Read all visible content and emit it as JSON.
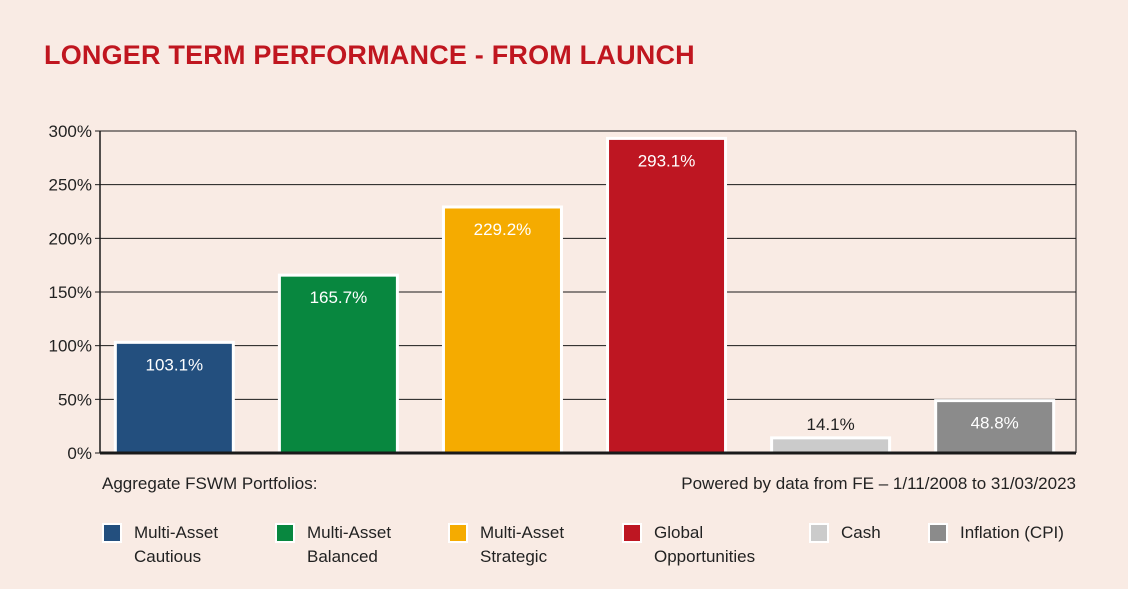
{
  "chart_data": {
    "type": "bar",
    "title": "LONGER TERM PERFORMANCE - FROM LAUNCH",
    "categories": [
      "Multi-Asset Cautious",
      "Multi-Asset Balanced",
      "Multi-Asset Strategic",
      "Global Opportunities",
      "Cash",
      "Inflation (CPI)"
    ],
    "values": [
      103.1,
      165.7,
      229.2,
      293.1,
      14.1,
      48.8
    ],
    "data_labels": [
      "103.1%",
      "165.7%",
      "229.2%",
      "293.1%",
      "14.1%",
      "48.8%"
    ],
    "colors": [
      "#234f7e",
      "#08873f",
      "#f5ab00",
      "#be1622",
      "#cbcbcb",
      "#8b8b8b"
    ],
    "label_colors": [
      "#ffffff",
      "#ffffff",
      "#ffffff",
      "#ffffff",
      "#222222",
      "#ffffff"
    ],
    "ylim": [
      0,
      300
    ],
    "yticks": [
      0,
      50,
      100,
      150,
      200,
      250,
      300
    ],
    "ytick_labels": [
      "0%",
      "50%",
      "100%",
      "150%",
      "200%",
      "250%",
      "300%"
    ],
    "grid": true,
    "legend_position": "bottom",
    "xlabel": "",
    "ylabel": ""
  },
  "notes": {
    "left": "Aggregate FSWM Portfolios:",
    "right": "Powered by data from FE – 1/11/2008 to 31/03/2023"
  },
  "legend": [
    {
      "line1": "Multi-Asset",
      "line2": "Cautious",
      "color": "#234f7e"
    },
    {
      "line1": "Multi-Asset",
      "line2": "Balanced",
      "color": "#08873f"
    },
    {
      "line1": "Multi-Asset",
      "line2": "Strategic",
      "color": "#f5ab00"
    },
    {
      "line1": "Global",
      "line2": "Opportunities",
      "color": "#be1622"
    },
    {
      "line1": "Cash",
      "line2": "",
      "color": "#cbcbcb"
    },
    {
      "line1": "Inflation (CPI)",
      "line2": "",
      "color": "#8b8b8b"
    }
  ]
}
